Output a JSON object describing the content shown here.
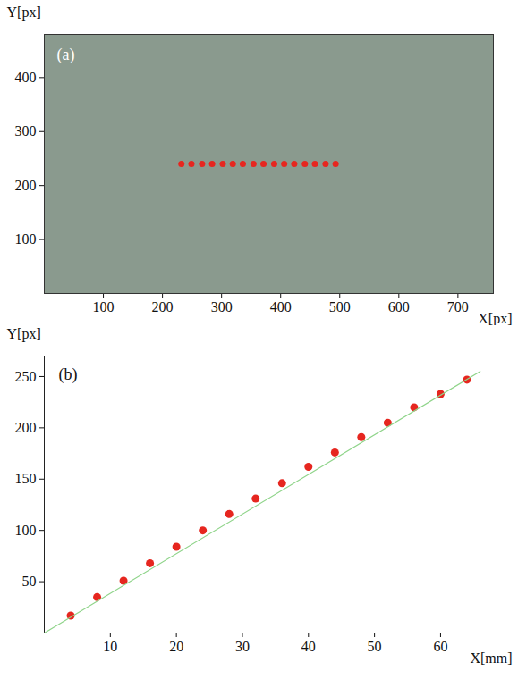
{
  "chart_data": [
    {
      "type": "scatter",
      "title": "(a)",
      "x_label": "X[px]",
      "y_label": "Y[px]",
      "x": [
        232,
        249,
        267,
        284,
        302,
        319,
        336,
        354,
        371,
        389,
        406,
        423,
        441,
        458,
        476,
        493
      ],
      "values": [
        240,
        240,
        240,
        240,
        240,
        240,
        240,
        240,
        240,
        240,
        240,
        240,
        240,
        240,
        240,
        240
      ],
      "color": "#e6261f",
      "marker": "circle",
      "xlim": [
        0,
        760
      ],
      "ylim": [
        0,
        480
      ],
      "xticks": [
        100,
        200,
        300,
        400,
        500,
        600,
        700
      ],
      "yticks": [
        100,
        200,
        300,
        400
      ]
    },
    {
      "type": "scatter",
      "title": "(b)",
      "x_label": "X[mm]",
      "y_label": "Y[px]",
      "series": [
        {
          "type": "scatter",
          "color": "#e6261f",
          "marker": "circle",
          "x": [
            4,
            8,
            12,
            16,
            20,
            24,
            28,
            32,
            36,
            40,
            44,
            48,
            52,
            56,
            60,
            64
          ],
          "values": [
            17,
            35,
            51,
            68,
            84,
            100,
            116,
            131,
            146,
            162,
            176,
            191,
            205,
            220,
            233,
            247
          ]
        },
        {
          "type": "line",
          "color": "#8fd48a",
          "line_style": "solid",
          "x": [
            0,
            66
          ],
          "values": [
            0,
            255
          ]
        }
      ],
      "xlim": [
        0,
        68
      ],
      "ylim": [
        0,
        270
      ],
      "xticks": [
        10,
        20,
        30,
        40,
        50,
        60
      ],
      "yticks": [
        50,
        100,
        150,
        200,
        250
      ]
    }
  ]
}
